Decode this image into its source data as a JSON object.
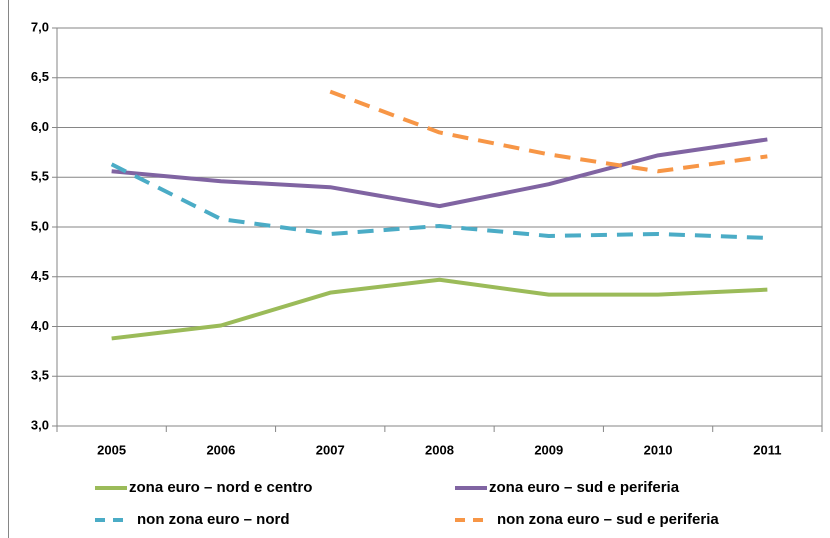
{
  "chart_data": {
    "type": "line",
    "categories": [
      "2005",
      "2006",
      "2007",
      "2008",
      "2009",
      "2010",
      "2011"
    ],
    "series": [
      {
        "name": "zona euro – nord e centro",
        "color": "#9bbb59",
        "dash": false,
        "values": [
          3.88,
          4.01,
          4.34,
          4.47,
          4.32,
          4.32,
          4.37
        ]
      },
      {
        "name": "zona euro – sud e periferia",
        "color": "#8064a2",
        "dash": false,
        "values": [
          5.56,
          5.46,
          5.4,
          5.21,
          5.43,
          5.72,
          5.88
        ]
      },
      {
        "name": "non zona euro – nord",
        "color": "#4bacc6",
        "dash": true,
        "values": [
          5.63,
          5.08,
          4.93,
          5.01,
          4.91,
          4.93,
          4.89
        ]
      },
      {
        "name": "non zona euro – sud e periferia",
        "color": "#f79646",
        "dash": true,
        "values": [
          null,
          null,
          6.36,
          5.95,
          5.73,
          5.56,
          5.71
        ]
      }
    ],
    "ylim": [
      3,
      7
    ],
    "yticks": [
      {
        "value": 3,
        "label": "3,0"
      },
      {
        "value": 3.5,
        "label": "3,5"
      },
      {
        "value": 4,
        "label": "4,0"
      },
      {
        "value": 4.5,
        "label": "4,5"
      },
      {
        "value": 5,
        "label": "5,0"
      },
      {
        "value": 5.5,
        "label": "5,5"
      },
      {
        "value": 6,
        "label": "6,0"
      },
      {
        "value": 6.5,
        "label": "6,5"
      },
      {
        "value": 7,
        "label": "7,0"
      }
    ],
    "grid": true
  }
}
